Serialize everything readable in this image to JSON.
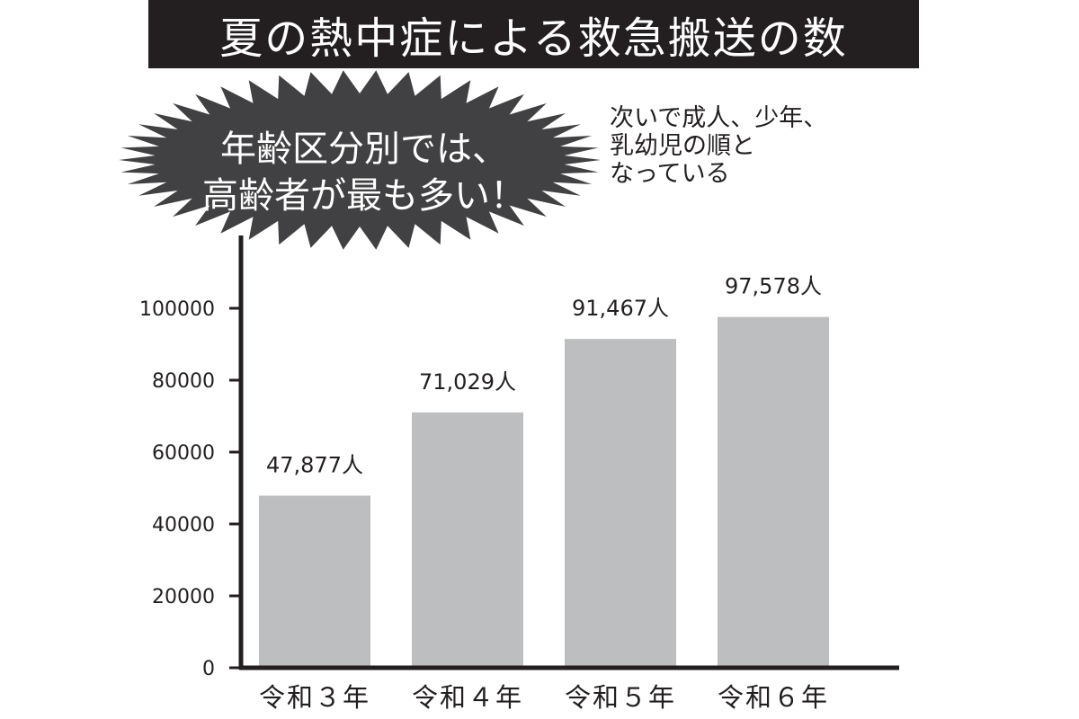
{
  "colors": {
    "bar": "#bcbec0",
    "axis": "#231f20",
    "title_background": "#231f20",
    "burst": "#414042"
  },
  "callout": {
    "line1": "年齢区分別では、",
    "line2": "高齢者が最も多い！"
  },
  "note": "次いで成人、少年、\n乳幼児の順と\nなっている",
  "chart_data": {
    "type": "bar",
    "title": "夏の熱中症による救急搬送の数",
    "categories": [
      "令和３年",
      "令和４年",
      "令和５年",
      "令和６年"
    ],
    "values": [
      47877,
      71029,
      91467,
      97578
    ],
    "data_labels": [
      "47,877人",
      "71,029人",
      "91,467人",
      "97,578人"
    ],
    "yticks": [
      "0",
      "20000",
      "40000",
      "60000",
      "80000",
      "100000"
    ],
    "ylim": [
      0,
      100000
    ],
    "xlabel": "",
    "ylabel": "",
    "grid": false,
    "legend": "none"
  }
}
